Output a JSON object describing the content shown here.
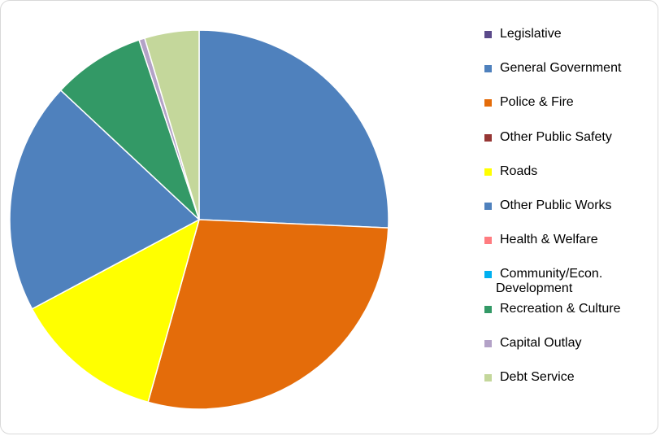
{
  "chart_data": {
    "type": "pie",
    "title": "",
    "legend_position": "right",
    "slices": [
      {
        "label": "Legislative",
        "value": 0.0,
        "color": "#5b4a8a"
      },
      {
        "label": "General Government",
        "value": 26.0,
        "color": "#4f81bd"
      },
      {
        "label": "Police & Fire",
        "value": 29.0,
        "color": "#e46c0a"
      },
      {
        "label": "Other Public Safety",
        "value": 0.0,
        "color": "#963634"
      },
      {
        "label": "Roads",
        "value": 13.0,
        "color": "#ffff00"
      },
      {
        "label": "Other Public Works",
        "value": 20.0,
        "color": "#4f81bd"
      },
      {
        "label": "Health & Welfare",
        "value": 0.0,
        "color": "#ff7c80"
      },
      {
        "label": "Community/Econ. Development",
        "value": 0.0,
        "color": "#00b0f0"
      },
      {
        "label": "Recreation & Culture",
        "value": 8.0,
        "color": "#339966"
      },
      {
        "label": "Capital Outlay",
        "value": 0.5,
        "color": "#b3a2c7"
      },
      {
        "label": "Debt Service",
        "value": 4.7,
        "color": "#c4d79b"
      }
    ]
  },
  "legend": {
    "items": [
      {
        "label": "Legislative",
        "color": "#5b4a8a"
      },
      {
        "label": "General Government",
        "color": "#4f81bd"
      },
      {
        "label": "Police & Fire",
        "color": "#e46c0a"
      },
      {
        "label": "Other Public Safety",
        "color": "#963634"
      },
      {
        "label": "Roads",
        "color": "#ffff00"
      },
      {
        "label": "Other Public Works",
        "color": "#4f81bd"
      },
      {
        "label": "Health & Welfare",
        "color": "#ff7c80"
      },
      {
        "label": "Community/Econ.",
        "label2": "Development",
        "color": "#00b0f0"
      },
      {
        "label": "Recreation & Culture",
        "color": "#339966"
      },
      {
        "label": "Capital Outlay",
        "color": "#b3a2c7"
      },
      {
        "label": "Debt Service",
        "color": "#c4d79b"
      }
    ]
  }
}
